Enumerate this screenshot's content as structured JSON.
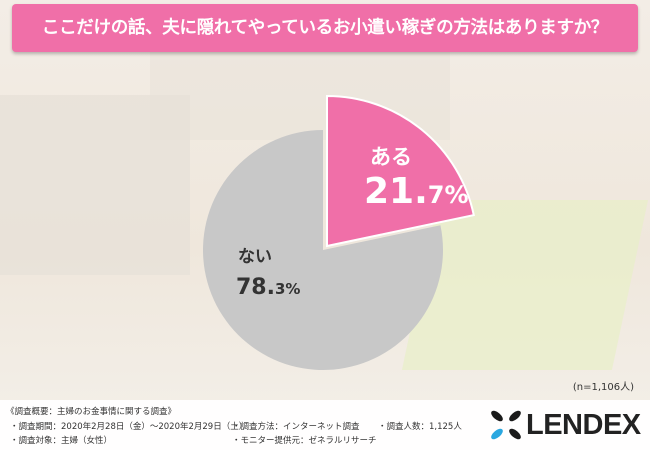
{
  "title": "ここだけの話、夫に隠れてやっているお小遣い稼ぎの方法はありますか？",
  "sample_note": "(n=1,106人)",
  "chart_data": {
    "type": "pie",
    "title": "ここだけの話、夫に隠れてやっているお小遣い稼ぎの方法はありますか？",
    "slices": [
      {
        "label": "ある",
        "value": 21.7,
        "display_num": "21.",
        "display_dec": "7%",
        "color": "#f06fa8",
        "exploded": true
      },
      {
        "label": "ない",
        "value": 78.3,
        "display_num": "78.",
        "display_dec": "3%",
        "color": "#c8c8c8",
        "exploded": false
      }
    ]
  },
  "footer": {
    "heading": "《調査概要：主婦のお金事情に関する調査》",
    "period": "・調査期間：2020年2月28日（金）～2020年2月29日（土）",
    "target": "・調査対象：主婦（女性）",
    "method": "・調査方法：インターネット調査",
    "provider": "・モニター提供元：ゼネラルリサーチ",
    "count": "・調査人数：1,125人"
  },
  "logo": {
    "text": "LENDEX",
    "colors": [
      "#1a1a1a",
      "#2aa7e0"
    ]
  }
}
